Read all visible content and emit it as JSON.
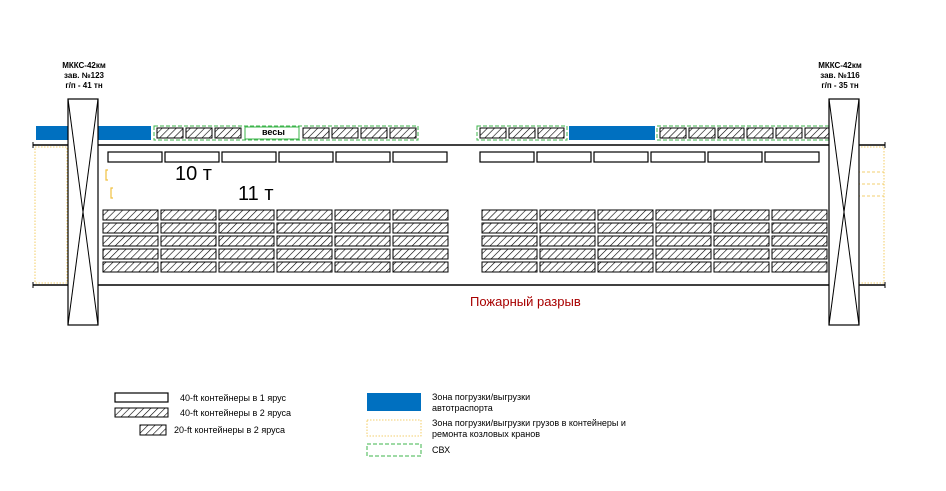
{
  "cranes": [
    {
      "model": "МККС-42км",
      "serial": "зав. №123",
      "capacity": "г/п - 41 тн"
    },
    {
      "model": "МККС-42км",
      "serial": "зав. №116",
      "capacity": "г/п - 35 тн"
    }
  ],
  "scale_label": "весы",
  "weight_labels": [
    "10 т",
    "11 т"
  ],
  "fire_break_label": "Пожарный разрыв",
  "legend": {
    "single_tier_40ft": "40-ft контейнеры в 1 ярус",
    "double_tier_40ft": "40-ft контейнеры в 2 яруса",
    "double_tier_20ft": "20-ft контейнеры в 2 яруса",
    "truck_zone": "Зона погрузки/выгрузки автотраспорта",
    "cargo_zone": "Зона погрузки/выгрузки грузов в контейнеры и ремонта козловых кранов",
    "customs_zone": "СВХ"
  },
  "colors": {
    "truck_zone": "#0070c0",
    "customs_zone": "#3cb44b",
    "cargo_zone": "#f0c040",
    "fire_break": "#a80000"
  }
}
